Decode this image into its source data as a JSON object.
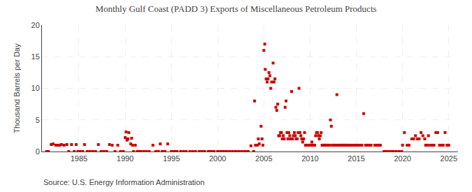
{
  "chart_data": {
    "type": "scatter",
    "title": "Monthly Gulf Coast (PADD 3) Exports of Miscellaneous Petroleum Products",
    "ylabel": "Thousand Barrels per Day",
    "annotations": [
      "Source: U.S. Energy Information Administration"
    ],
    "color": "#cc0000",
    "marker": "square",
    "grid": true,
    "xlim": [
      1981.0,
      2026.0
    ],
    "ylim": [
      0,
      20
    ],
    "xticks": [
      1985,
      1990,
      1995,
      2000,
      2005,
      2010,
      2015,
      2020,
      2025
    ],
    "yticks": [
      0,
      5,
      10,
      15,
      20
    ],
    "x": [
      1981.5,
      1981.7,
      1982.0,
      1982.2,
      1982.5,
      1982.7,
      1982.9,
      1983.1,
      1983.4,
      1983.7,
      1983.9,
      1984.2,
      1984.5,
      1984.7,
      1984.9,
      1985.1,
      1985.4,
      1985.6,
      1985.9,
      1986.2,
      1986.5,
      1986.8,
      1987.1,
      1987.4,
      1987.7,
      1988.0,
      1988.3,
      1988.6,
      1988.9,
      1989.2,
      1989.5,
      1989.8,
      1990.0,
      1990.1,
      1990.2,
      1990.3,
      1990.4,
      1990.6,
      1990.7,
      1990.8,
      1990.9,
      1991.1,
      1991.3,
      1991.5,
      1991.7,
      1992.0,
      1992.3,
      1992.6,
      1993.0,
      1993.3,
      1993.6,
      1993.8,
      1994.0,
      1994.3,
      1994.6,
      1995.0,
      1995.3,
      1995.6,
      1996.0,
      1996.3,
      1996.6,
      1997.0,
      1997.3,
      1997.6,
      1998.0,
      1998.3,
      1998.6,
      1999.0,
      1999.3,
      1999.6,
      2000.0,
      2000.3,
      2000.6,
      2000.9,
      2001.0,
      2001.3,
      2001.6,
      2001.9,
      2002.0,
      2002.3,
      2002.6,
      2002.9,
      2003.0,
      2003.3,
      2003.6,
      2003.9,
      2004.0,
      2004.1,
      2004.3,
      2004.4,
      2004.5,
      2004.7,
      2004.8,
      2004.9,
      2005.0,
      2005.1,
      2005.15,
      2005.25,
      2005.35,
      2005.45,
      2005.55,
      2005.65,
      2005.75,
      2005.85,
      2006.0,
      2006.1,
      2006.2,
      2006.3,
      2006.4,
      2006.5,
      2006.6,
      2006.7,
      2006.8,
      2006.9,
      2007.0,
      2007.1,
      2007.2,
      2007.3,
      2007.4,
      2007.5,
      2007.6,
      2007.7,
      2007.8,
      2007.9,
      2008.0,
      2008.1,
      2008.2,
      2008.3,
      2008.4,
      2008.5,
      2008.6,
      2008.7,
      2008.8,
      2008.9,
      2009.0,
      2009.1,
      2009.2,
      2009.3,
      2009.4,
      2009.5,
      2009.6,
      2009.7,
      2009.8,
      2009.9,
      2010.0,
      2010.1,
      2010.2,
      2010.3,
      2010.4,
      2010.5,
      2010.6,
      2010.7,
      2010.8,
      2010.9,
      2011.0,
      2011.1,
      2011.2,
      2011.3,
      2011.4,
      2011.5,
      2011.6,
      2011.7,
      2011.8,
      2011.9,
      2012.0,
      2012.1,
      2012.2,
      2012.3,
      2012.4,
      2012.5,
      2012.6,
      2012.7,
      2012.8,
      2012.9,
      2013.0,
      2013.1,
      2013.2,
      2013.3,
      2013.4,
      2013.5,
      2013.6,
      2013.7,
      2013.8,
      2013.9,
      2014.0,
      2014.2,
      2014.4,
      2014.6,
      2014.8,
      2015.0,
      2015.2,
      2015.4,
      2015.6,
      2015.8,
      2016.0,
      2016.2,
      2016.4,
      2016.6,
      2017.0,
      2017.2,
      2017.4,
      2017.6,
      2018.0,
      2018.2,
      2018.5,
      2018.8,
      2019.0,
      2019.3,
      2019.6,
      2019.9,
      2020.0,
      2020.2,
      2020.5,
      2020.7,
      2021.0,
      2021.2,
      2021.4,
      2021.6,
      2021.8,
      2022.0,
      2022.2,
      2022.4,
      2022.5,
      2022.6,
      2022.7,
      2022.8,
      2023.0,
      2023.2,
      2023.4,
      2023.6,
      2023.8,
      2024.0,
      2024.2,
      2024.4,
      2024.6,
      2024.8,
      2025.0
    ],
    "values": [
      0.0,
      0.0,
      1.1,
      1.2,
      1.0,
      1.0,
      1.0,
      1.1,
      1.0,
      1.1,
      0.0,
      1.1,
      0.0,
      1.1,
      0.0,
      0.0,
      0.0,
      1.1,
      0.0,
      0.0,
      0.0,
      0.0,
      1.1,
      0.0,
      0.0,
      0.0,
      1.1,
      1.0,
      0.0,
      1.0,
      0.0,
      0.0,
      2.2,
      3.1,
      1.8,
      2.0,
      3.0,
      1.2,
      2.1,
      1.0,
      0.0,
      1.0,
      0.0,
      0.0,
      0.0,
      0.0,
      0.0,
      0.0,
      1.0,
      0.0,
      0.0,
      1.2,
      0.0,
      0.0,
      1.2,
      0.0,
      0.0,
      0.0,
      0.0,
      0.0,
      0.0,
      0.0,
      0.0,
      0.0,
      0.0,
      0.0,
      0.0,
      0.0,
      0.0,
      0.0,
      0.0,
      0.0,
      0.0,
      0.0,
      0.0,
      0.0,
      0.0,
      0.0,
      0.0,
      0.0,
      0.0,
      0.0,
      0.0,
      0.0,
      0.9,
      0.0,
      8.0,
      1.0,
      1.0,
      2.0,
      1.2,
      4.0,
      2.0,
      1.0,
      16.0,
      17.0,
      13.0,
      11.5,
      11.0,
      11.5,
      12.5,
      12.0,
      10.0,
      11.0,
      14.0,
      11.0,
      11.5,
      7.0,
      6.5,
      7.5,
      2.5,
      2.5,
      3.0,
      3.0,
      2.0,
      2.5,
      2.0,
      7.0,
      8.0,
      3.0,
      2.0,
      3.0,
      2.5,
      2.0,
      9.5,
      2.0,
      2.5,
      3.0,
      2.5,
      2.0,
      2.0,
      3.0,
      10.0,
      3.0,
      2.5,
      2.0,
      1.5,
      2.0,
      3.0,
      1.0,
      1.0,
      1.0,
      1.0,
      1.0,
      1.0,
      1.0,
      1.5,
      1.0,
      1.0,
      1.0,
      2.5,
      3.0,
      3.0,
      2.5,
      2.0,
      2.5,
      3.0,
      1.0,
      1.0,
      1.0,
      1.0,
      1.0,
      1.0,
      1.0,
      1.0,
      1.0,
      5.0,
      4.0,
      1.0,
      1.0,
      1.0,
      1.0,
      1.0,
      9.0,
      1.0,
      1.0,
      1.0,
      1.0,
      1.0,
      1.0,
      1.0,
      1.0,
      1.0,
      1.0,
      1.0,
      1.0,
      1.0,
      1.0,
      1.0,
      1.0,
      1.0,
      1.0,
      1.0,
      6.0,
      1.0,
      1.0,
      1.0,
      1.0,
      1.0,
      1.0,
      1.0,
      1.0,
      0.0,
      0.0,
      0.0,
      0.0,
      0.0,
      0.0,
      0.0,
      0.0,
      1.0,
      3.0,
      1.0,
      1.0,
      2.0,
      2.0,
      2.5,
      2.0,
      2.0,
      3.0,
      2.5,
      2.0,
      1.0,
      1.0,
      1.0,
      2.5,
      1.0,
      1.0,
      1.0,
      3.0,
      3.0,
      1.0,
      1.0,
      1.0,
      3.0,
      1.0,
      1.0
    ]
  }
}
